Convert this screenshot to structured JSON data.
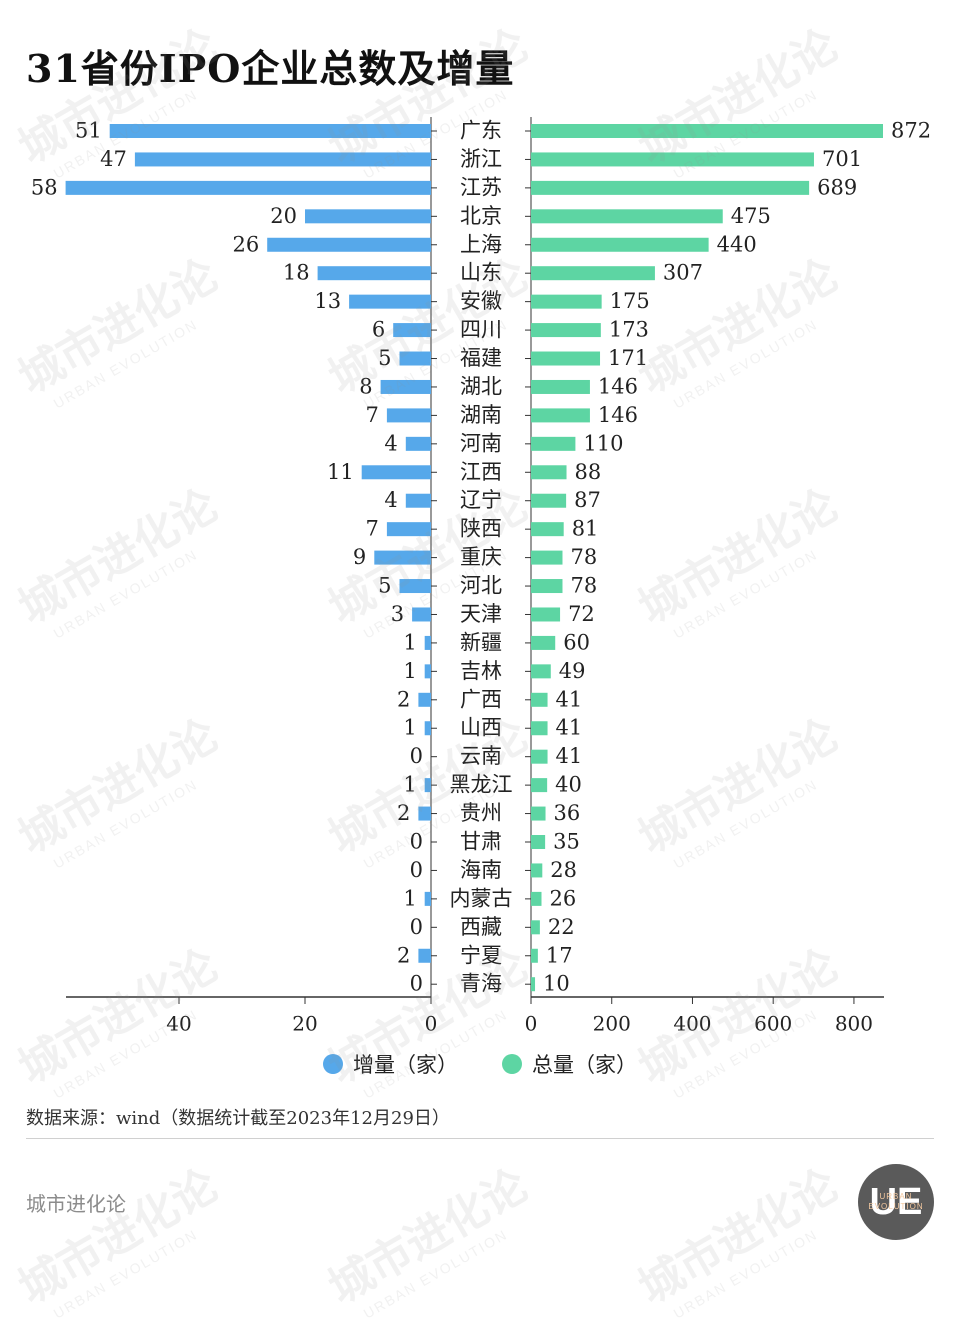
{
  "title": "31省份IPO企业总数及增量",
  "legend": {
    "increment_label": "增量（家）",
    "total_label": "总量（家）"
  },
  "source": "数据来源：wind（数据统计截至2023年12月29日）",
  "brand": "城市进化论",
  "logo": {
    "glyph": "UE",
    "text": "URBAN EVOLUTION"
  },
  "watermark": {
    "cn": "城市进化论",
    "en": "URBAN EVOLUTION"
  },
  "colors": {
    "increment": "#56a8ea",
    "total": "#5dd5a3",
    "logo_bg": "#5a5a5a"
  },
  "chart_data": {
    "type": "bar",
    "categories": [
      "广东",
      "浙江",
      "江苏",
      "北京",
      "上海",
      "山东",
      "安徽",
      "四川",
      "福建",
      "湖北",
      "湖南",
      "河南",
      "江西",
      "辽宁",
      "陕西",
      "重庆",
      "河北",
      "天津",
      "新疆",
      "吉林",
      "广西",
      "山西",
      "云南",
      "黑龙江",
      "贵州",
      "甘肃",
      "海南",
      "内蒙古",
      "西藏",
      "宁夏",
      "青海"
    ],
    "series": [
      {
        "name": "增量（家）",
        "values": [
          51,
          47,
          58,
          20,
          26,
          18,
          13,
          6,
          5,
          8,
          7,
          4,
          11,
          4,
          7,
          9,
          5,
          3,
          1,
          1,
          2,
          1,
          0,
          1,
          2,
          0,
          0,
          1,
          0,
          2,
          0
        ],
        "xlim": [
          60,
          0
        ],
        "ticks": [
          40,
          20,
          0
        ]
      },
      {
        "name": "总量（家）",
        "values": [
          872,
          701,
          689,
          475,
          440,
          307,
          175,
          173,
          171,
          146,
          146,
          110,
          88,
          87,
          81,
          78,
          78,
          72,
          60,
          49,
          41,
          41,
          41,
          40,
          36,
          35,
          28,
          26,
          22,
          17,
          10
        ],
        "xlim": [
          0,
          872
        ],
        "ticks": [
          0,
          200,
          400,
          600,
          800
        ]
      }
    ]
  }
}
